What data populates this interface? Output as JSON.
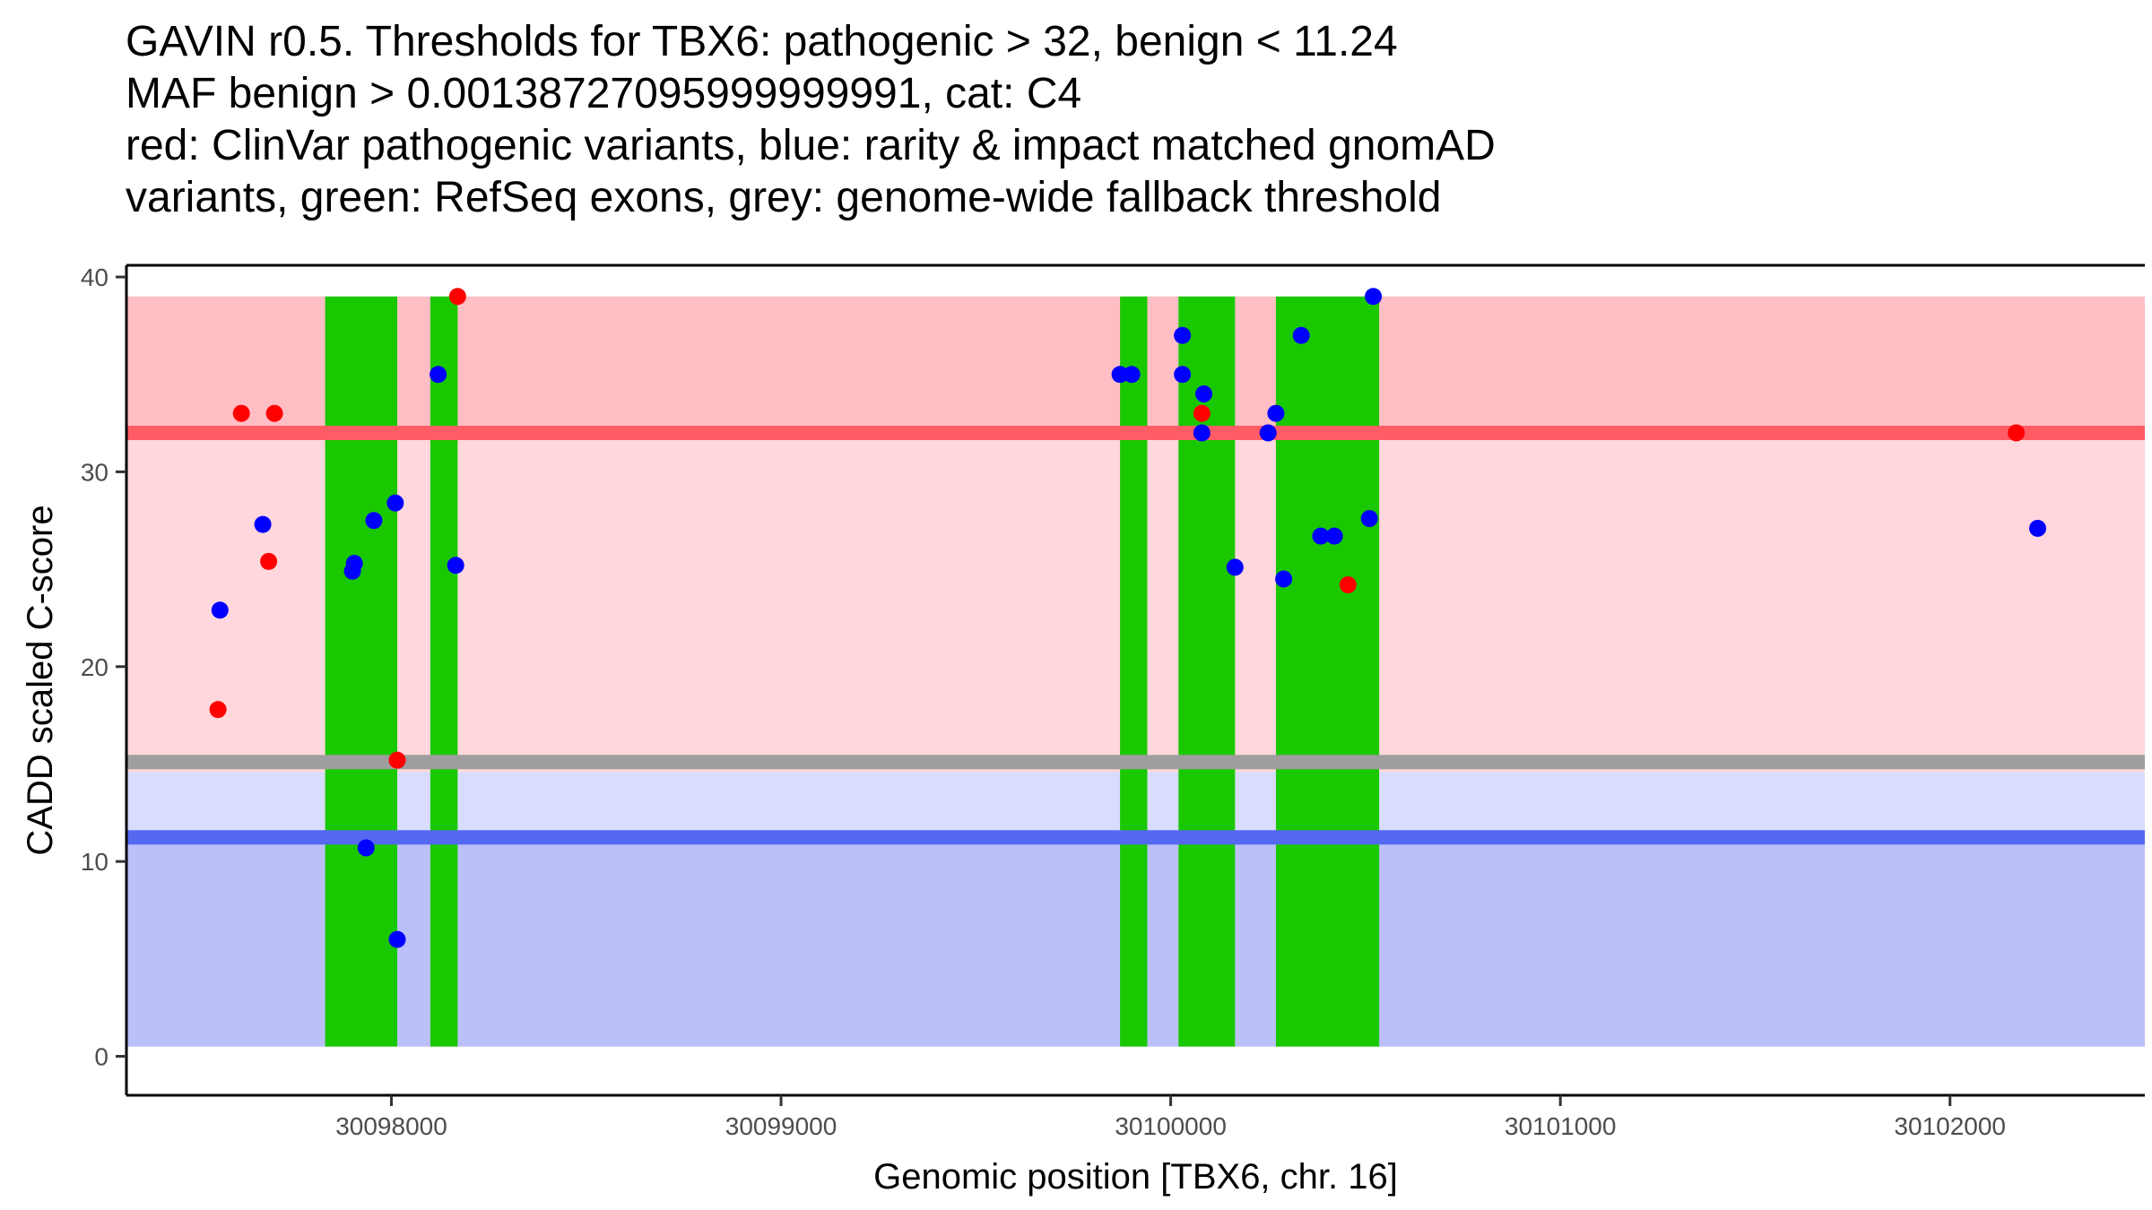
{
  "title": {
    "line1": "GAVIN r0.5. Thresholds for TBX6: pathogenic > 32, benign < 11.24",
    "line2": "MAF benign > 0.00138727095999999991, cat: C4",
    "line3": "red: ClinVar pathogenic variants, blue: rarity & impact matched gnomAD",
    "line4": "variants, green: RefSeq exons, grey: genome-wide fallback threshold"
  },
  "chart_data": {
    "type": "scatter",
    "xlabel": "Genomic position [TBX6, chr. 16]",
    "ylabel": "CADD scaled C-score",
    "xlim": [
      30097320,
      30102500
    ],
    "ylim": [
      -2,
      40.6
    ],
    "x_ticks": [
      30098000,
      30099000,
      30100000,
      30101000,
      30102000
    ],
    "y_ticks": [
      0,
      10,
      20,
      30,
      40
    ],
    "grid": false,
    "colors": {
      "pathogenic_zone": "#ffd7dc",
      "pathogenic_high_zone": "#ffbec4",
      "pathogenic_threshold": "#ff5c66",
      "benign_upper_zone": "#d8dcfe",
      "benign_zone": "#bbbffa",
      "benign_threshold": "#5469f0",
      "fallback_threshold": "#9e9e9e",
      "exon": "#1ac800",
      "clinvar_point": "#ff0000",
      "gnomad_point": "#0000ff"
    },
    "bands": [
      {
        "name": "benign",
        "y0": 0.5,
        "y1": 11.24
      },
      {
        "name": "benign-upper",
        "y0": 11.24,
        "y1": 14.6
      },
      {
        "name": "pathogenic",
        "y0": 14.6,
        "y1": 32
      },
      {
        "name": "pathogenic-high",
        "y0": 32,
        "y1": 39
      }
    ],
    "threshold_lines": [
      {
        "name": "pathogenic",
        "y": 32
      },
      {
        "name": "fallback",
        "y": 15.1
      },
      {
        "name": "benign",
        "y": 11.24
      }
    ],
    "exons": [
      {
        "start": 30097830,
        "end": 30098015
      },
      {
        "start": 30098100,
        "end": 30098170
      },
      {
        "start": 30099870,
        "end": 30099940
      },
      {
        "start": 30100020,
        "end": 30100165
      },
      {
        "start": 30100270,
        "end": 30100535
      }
    ],
    "series": [
      {
        "name": "ClinVar pathogenic",
        "color_key": "clinvar_point",
        "points": [
          {
            "x": 30097555,
            "y": 17.8
          },
          {
            "x": 30097615,
            "y": 33
          },
          {
            "x": 30097700,
            "y": 33
          },
          {
            "x": 30097685,
            "y": 25.4
          },
          {
            "x": 30098015,
            "y": 15.2
          },
          {
            "x": 30098170,
            "y": 39
          },
          {
            "x": 30100080,
            "y": 33
          },
          {
            "x": 30100455,
            "y": 24.2
          },
          {
            "x": 30102170,
            "y": 32
          }
        ]
      },
      {
        "name": "gnomAD matched",
        "color_key": "gnomad_point",
        "points": [
          {
            "x": 30097560,
            "y": 22.9
          },
          {
            "x": 30097670,
            "y": 27.3
          },
          {
            "x": 30097905,
            "y": 25.3
          },
          {
            "x": 30097900,
            "y": 24.9
          },
          {
            "x": 30097955,
            "y": 27.5
          },
          {
            "x": 30098010,
            "y": 28.4
          },
          {
            "x": 30097935,
            "y": 10.7
          },
          {
            "x": 30098015,
            "y": 6
          },
          {
            "x": 30098120,
            "y": 35
          },
          {
            "x": 30098165,
            "y": 25.2
          },
          {
            "x": 30099870,
            "y": 35
          },
          {
            "x": 30099900,
            "y": 35
          },
          {
            "x": 30100030,
            "y": 37
          },
          {
            "x": 30100030,
            "y": 35
          },
          {
            "x": 30100085,
            "y": 34
          },
          {
            "x": 30100080,
            "y": 32
          },
          {
            "x": 30100165,
            "y": 25.1
          },
          {
            "x": 30100250,
            "y": 32
          },
          {
            "x": 30100270,
            "y": 33
          },
          {
            "x": 30100290,
            "y": 24.5
          },
          {
            "x": 30100335,
            "y": 37
          },
          {
            "x": 30100385,
            "y": 26.7
          },
          {
            "x": 30100420,
            "y": 26.7
          },
          {
            "x": 30100510,
            "y": 27.6
          },
          {
            "x": 30100520,
            "y": 39
          },
          {
            "x": 30102225,
            "y": 27.1
          }
        ]
      }
    ]
  }
}
